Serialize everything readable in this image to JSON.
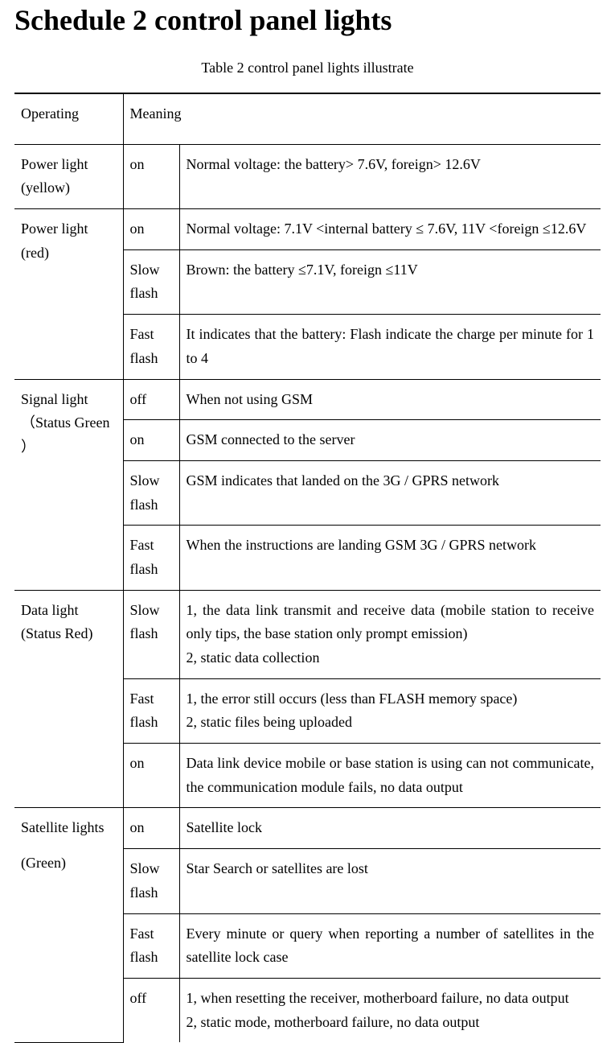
{
  "title": "Schedule 2 control panel lights",
  "caption": "Table 2 control panel lights illustrate",
  "header": {
    "col1": "Operating",
    "col2": "Meaning"
  },
  "rows": [
    {
      "light": "Power light (yellow)",
      "states": [
        {
          "state": "on",
          "meaning": "Normal voltage: the battery> 7.6V, foreign> 12.6V",
          "justify": false
        }
      ]
    },
    {
      "light": "Power light (red)",
      "states": [
        {
          "state": "on",
          "meaning": "Normal voltage: 7.1V <internal battery ≤ 7.6V, 11V <foreign ≤12.6V",
          "justify": true
        },
        {
          "state": "Slow flash",
          "meaning": "Brown: the battery ≤7.1V, foreign ≤11V",
          "justify": false
        },
        {
          "state": "Fast flash",
          "meaning": "It indicates that the battery: Flash indicate the charge per minute for 1 to 4",
          "justify": true
        }
      ]
    },
    {
      "light": "Signal light （Status Green ）",
      "states": [
        {
          "state": "off",
          "meaning": "When not using GSM",
          "justify": false
        },
        {
          "state": "on",
          "meaning": "GSM connected to the server",
          "justify": false
        },
        {
          "state": "Slow flash",
          "meaning": "GSM indicates that landed on the 3G / GPRS network",
          "justify": false
        },
        {
          "state": "Fast flash",
          "meaning": "When the instructions are landing GSM 3G / GPRS network",
          "justify": true
        }
      ]
    },
    {
      "light": "Data light (Status Red)",
      "states": [
        {
          "state": "Slow flash",
          "meaning": "1, the data link transmit and receive data (mobile station to receive only tips, the base station only prompt emission)\n2, static data collection",
          "justify": true
        },
        {
          "state": "Fast flash",
          "meaning": "1, the error still occurs (less than FLASH memory space)\n2, static files being uploaded",
          "justify": false
        },
        {
          "state": "on",
          "meaning": "Data link device mobile or base station is using can not communicate, the communication module fails, no data output",
          "justify": true
        }
      ]
    },
    {
      "light": "Satellite lights\n(Green)",
      "light_html": "Satellite lights<br><span style='display:block;margin-top:14px'>(Green)</span>",
      "states": [
        {
          "state": "on",
          "meaning": "Satellite lock",
          "justify": false
        },
        {
          "state": "Slow flash",
          "meaning": "Star Search or satellites are lost",
          "justify": false
        },
        {
          "state": "Fast flash",
          "meaning": "Every minute or query when reporting a number of satellites in the satellite lock case",
          "justify": true
        },
        {
          "state": "off",
          "meaning": "1, when resetting the receiver, motherboard failure, no data output\n2, static mode, motherboard failure, no data output",
          "justify": false
        }
      ]
    }
  ]
}
